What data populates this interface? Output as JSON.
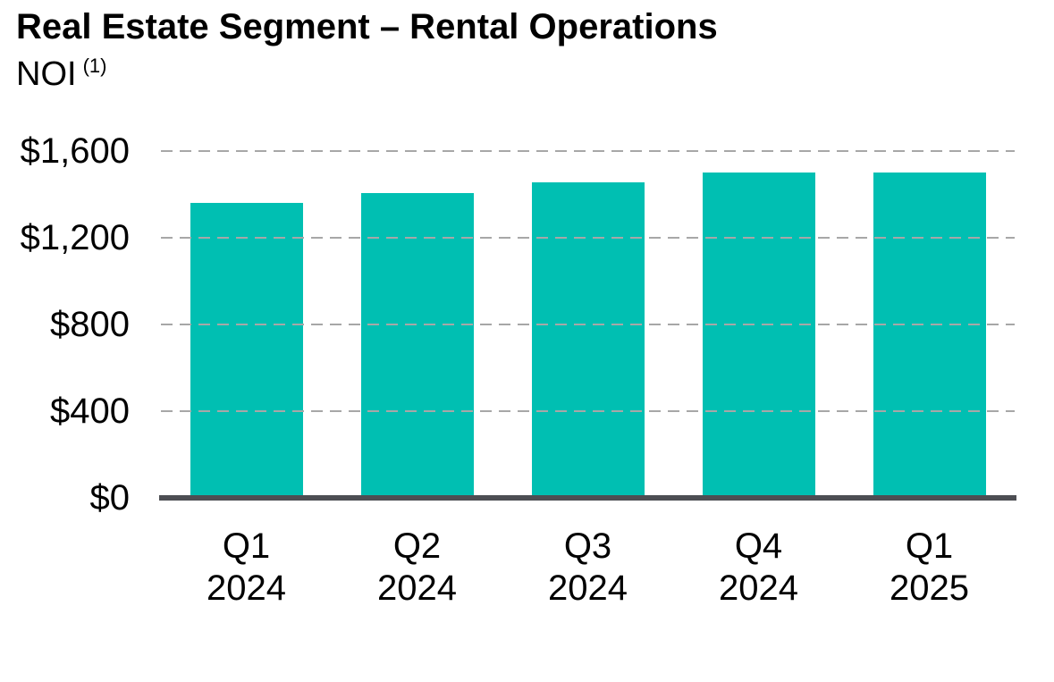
{
  "header": {
    "title": "Real Estate Segment – Rental Operations",
    "subtitle_base": "NOI",
    "subtitle_superscript": "(1)"
  },
  "chart_data": {
    "type": "bar",
    "title": "Real Estate Segment – Rental Operations NOI (1)",
    "xlabel": "",
    "ylabel": "",
    "categories": [
      "Q1 2024",
      "Q2 2024",
      "Q3 2024",
      "Q4 2024",
      "Q1 2025"
    ],
    "category_lines": [
      [
        "Q1",
        "2024"
      ],
      [
        "Q2",
        "2024"
      ],
      [
        "Q3",
        "2024"
      ],
      [
        "Q4",
        "2024"
      ],
      [
        "Q1",
        "2025"
      ]
    ],
    "values": [
      1360,
      1405,
      1455,
      1500,
      1500
    ],
    "ylim": [
      0,
      1600
    ],
    "yticks": [
      {
        "value": 1600,
        "label": "$1,600"
      },
      {
        "value": 1200,
        "label": "$1,200"
      },
      {
        "value": 800,
        "label": "$800"
      },
      {
        "value": 400,
        "label": "$400"
      },
      {
        "value": 0,
        "label": "$0"
      }
    ],
    "grid": "horizontal-dashed",
    "legend": "none",
    "bar_color": "#00bfb2",
    "axis_line_color": "#4d4e53",
    "gridline_color": "#a7a7a7",
    "text_color": "#000000"
  }
}
